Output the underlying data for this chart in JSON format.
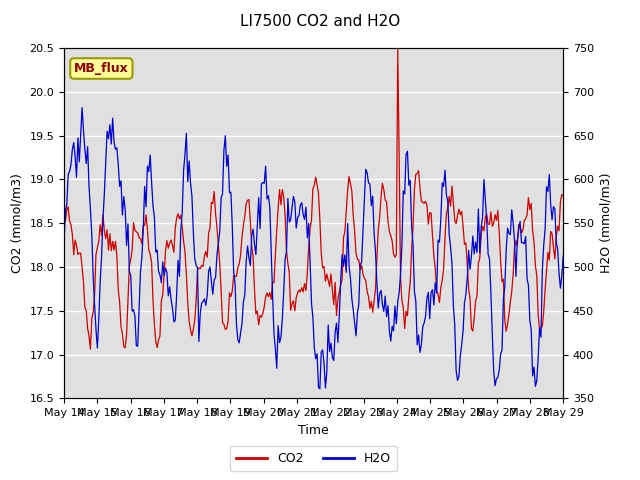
{
  "title": "LI7500 CO2 and H2O",
  "xlabel": "Time",
  "ylabel_left": "CO2 (mmol/m3)",
  "ylabel_right": "H2O (mmol/m3)",
  "ylim_left": [
    16.5,
    20.5
  ],
  "ylim_right": [
    350,
    750
  ],
  "xtick_labels": [
    "May 14",
    "May 15",
    "May 16",
    "May 17",
    "May 18",
    "May 19",
    "May 20",
    "May 21",
    "May 22",
    "May 23",
    "May 24",
    "May 25",
    "May 26",
    "May 27",
    "May 28",
    "May 29"
  ],
  "color_co2": "#cc0000",
  "color_h2o": "#0000cc",
  "background_color": "#e0e0e0",
  "figure_background": "#ffffff",
  "legend_box_color": "#ffff99",
  "legend_box_edge": "#999900",
  "annotation_text": "MB_flux",
  "title_fontsize": 11,
  "label_fontsize": 9,
  "tick_fontsize": 8
}
